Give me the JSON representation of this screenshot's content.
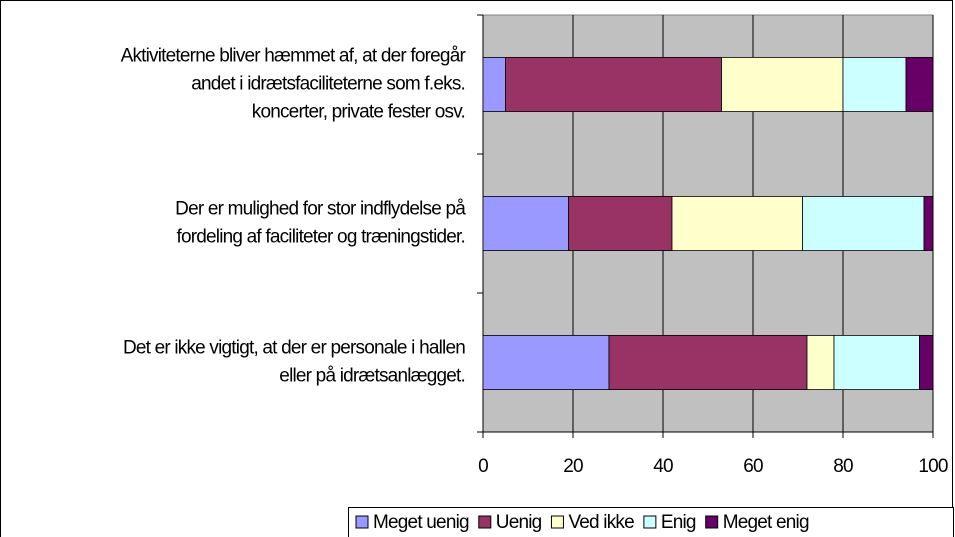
{
  "chart_data": {
    "type": "bar",
    "orientation": "horizontal",
    "stacked": true,
    "categories": [
      [
        "Aktiviteterne bliver hæmmet af, at der foregår",
        "andet i idrætsfaciliteterne som f.eks.",
        "koncerter, private fester osv."
      ],
      [
        "Der er mulighed for stor indflydelse på",
        "fordeling af faciliteter og træningstider."
      ],
      [
        "Det er ikke vigtigt, at der er personale i hallen",
        "eller på idrætsanlægget."
      ]
    ],
    "series": [
      {
        "name": "Meget uenig",
        "color": "#9999FF",
        "values": [
          5,
          19,
          28
        ]
      },
      {
        "name": "Uenig",
        "color": "#993366",
        "values": [
          48,
          23,
          44
        ]
      },
      {
        "name": "Ved ikke",
        "color": "#FFFFCC",
        "values": [
          27,
          29,
          6
        ]
      },
      {
        "name": "Enig",
        "color": "#CCFFFF",
        "values": [
          14,
          27,
          19
        ]
      },
      {
        "name": "Meget enig",
        "color": "#660066",
        "values": [
          6,
          2,
          3
        ]
      }
    ],
    "xlim": [
      0,
      100
    ],
    "xticks": [
      0,
      20,
      40,
      60,
      80,
      100
    ],
    "grid": true,
    "legend": "bottom"
  }
}
